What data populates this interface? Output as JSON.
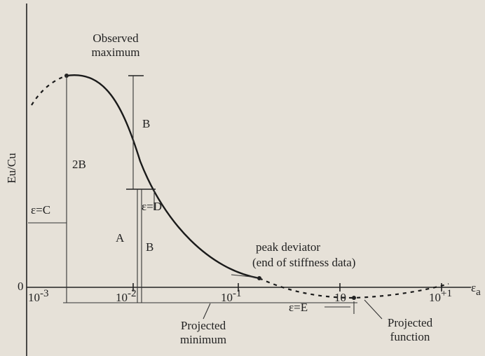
{
  "y_axis_label": "Eu/Cu",
  "x_axis_label": {
    "base": "ε",
    "sub": "a"
  },
  "origin_label": "0",
  "x_ticks": [
    {
      "base": "10",
      "exp": "-3"
    },
    {
      "base": "10",
      "exp": "-2"
    },
    {
      "base": "10",
      "exp": "-1"
    },
    {
      "base": "10",
      "exp": ""
    },
    {
      "base": "10",
      "exp": "+1"
    }
  ],
  "annotations": {
    "observed_maximum": [
      "Observed",
      "maximum"
    ],
    "b_upper": "B",
    "two_b": "2B",
    "eps_c": "ε=C",
    "eps_d": "ε=D",
    "a": "A",
    "b_lower": "B",
    "peak_deviator": [
      "peak deviator",
      "(end of stiffness data)"
    ],
    "eps_e": "ε=E",
    "projected_minimum": [
      "Projected",
      "minimum"
    ],
    "projected_function": [
      "Projected",
      "function"
    ]
  }
}
